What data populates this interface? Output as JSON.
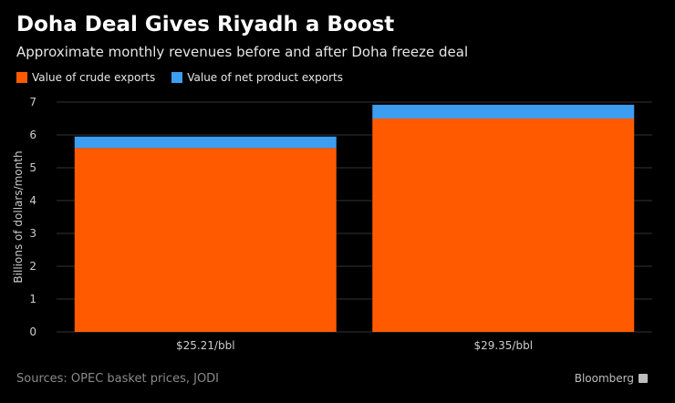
{
  "header": {
    "title": "Doha Deal Gives Riyadh a Boost",
    "subtitle": "Approximate monthly revenues before and after Doha freeze deal"
  },
  "footer": {
    "source": "Sources: OPEC basket prices, JODI",
    "brand": "Bloomberg"
  },
  "colors": {
    "crude": "#ff5a00",
    "product": "#3d9df0",
    "grid": "#333333",
    "axis_text": "#cccccc"
  },
  "chart_data": {
    "type": "bar",
    "stacked": true,
    "categories": [
      "$25.21/bbl",
      "$29.35/bbl"
    ],
    "series": [
      {
        "name": "Value of crude exports",
        "values": [
          5.6,
          6.5
        ]
      },
      {
        "name": "Value of net product exports",
        "values": [
          0.35,
          0.42
        ]
      }
    ],
    "ylabel": "Billions of dollars/month",
    "ylim": [
      0,
      7
    ],
    "yticks": [
      0,
      1,
      2,
      3,
      4,
      5,
      6,
      7
    ],
    "grid": true,
    "legend_position": "top-left"
  }
}
